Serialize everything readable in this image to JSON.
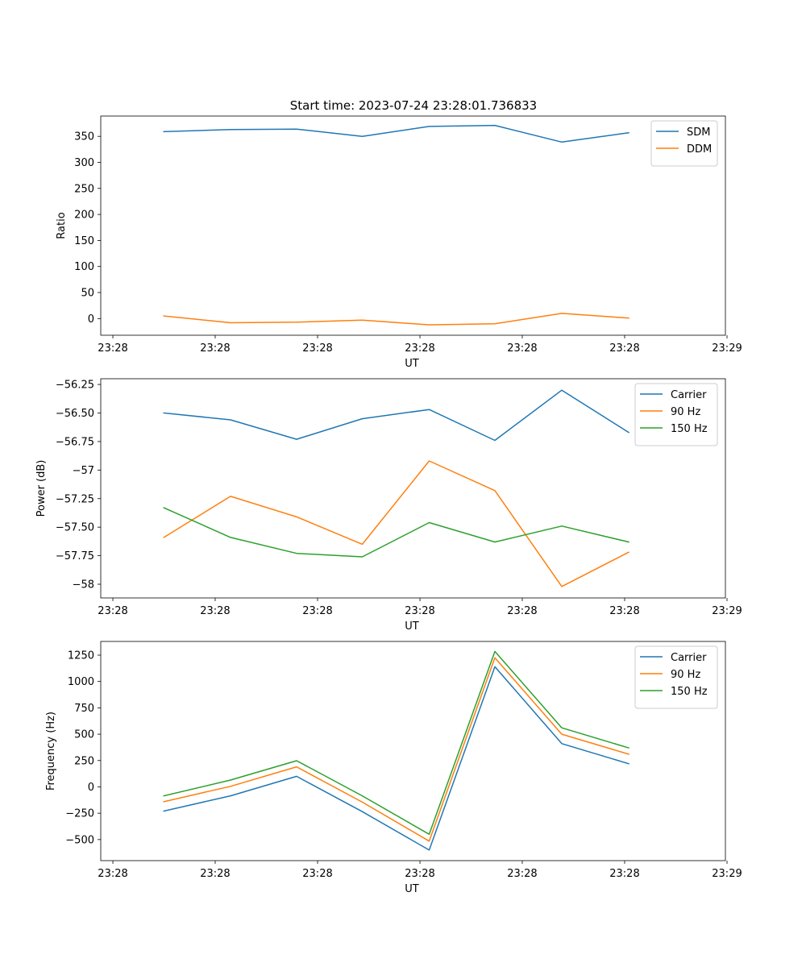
{
  "figure": {
    "title": "Start time: 2023-07-24 23:28:01.736833"
  },
  "chart_data": [
    {
      "type": "line",
      "xlabel": "UT",
      "ylabel": "Ratio",
      "x_ticks": [
        "23:28",
        "23:28",
        "23:28",
        "23:28",
        "23:28",
        "23:28",
        "23:29"
      ],
      "y_ticks": [
        0,
        50,
        100,
        150,
        200,
        250,
        300,
        350
      ],
      "ylim": [
        -32,
        389
      ],
      "legend_position": "top-right",
      "x": [
        1,
        2,
        3,
        4,
        5,
        6,
        7,
        8
      ],
      "series": [
        {
          "name": "SDM",
          "color": "#1f77b4",
          "values": [
            359,
            363,
            364,
            350,
            369,
            371,
            339,
            357
          ]
        },
        {
          "name": "DDM",
          "color": "#ff7f0e",
          "values": [
            5,
            -8,
            -7,
            -3,
            -12,
            -10,
            10,
            1
          ]
        }
      ]
    },
    {
      "type": "line",
      "xlabel": "UT",
      "ylabel": "Power (dB)",
      "x_ticks": [
        "23:28",
        "23:28",
        "23:28",
        "23:28",
        "23:28",
        "23:28",
        "23:29"
      ],
      "y_ticks": [
        -58.0,
        -57.75,
        -57.5,
        -57.25,
        -57.0,
        -56.75,
        -56.5,
        -56.25
      ],
      "ylim": [
        -58.12,
        -56.2
      ],
      "legend_position": "top-right",
      "x": [
        1,
        2,
        3,
        4,
        5,
        6,
        7,
        8
      ],
      "series": [
        {
          "name": "Carrier",
          "color": "#1f77b4",
          "values": [
            -56.5,
            -56.56,
            -56.73,
            -56.55,
            -56.47,
            -56.74,
            -56.3,
            -56.67
          ]
        },
        {
          "name": "90 Hz",
          "color": "#ff7f0e",
          "values": [
            -57.59,
            -57.23,
            -57.41,
            -57.65,
            -56.92,
            -57.18,
            -58.02,
            -57.72
          ]
        },
        {
          "name": "150 Hz",
          "color": "#2ca02c",
          "values": [
            -57.33,
            -57.59,
            -57.73,
            -57.76,
            -57.46,
            -57.63,
            -57.49,
            -57.63
          ]
        }
      ]
    },
    {
      "type": "line",
      "xlabel": "UT",
      "ylabel": "Frequency (Hz)",
      "x_ticks": [
        "23:28",
        "23:28",
        "23:28",
        "23:28",
        "23:28",
        "23:28",
        "23:29"
      ],
      "y_ticks": [
        -500,
        -250,
        0,
        250,
        500,
        750,
        1000,
        1250
      ],
      "ylim": [
        -700,
        1380
      ],
      "legend_position": "top-right",
      "x": [
        1,
        2,
        3,
        4,
        5,
        6,
        7,
        8
      ],
      "series": [
        {
          "name": "Carrier",
          "color": "#1f77b4",
          "values": [
            -230,
            -85,
            100,
            -235,
            -600,
            1140,
            410,
            220
          ]
        },
        {
          "name": "90 Hz",
          "color": "#ff7f0e",
          "values": [
            -140,
            5,
            190,
            -145,
            -515,
            1225,
            500,
            310
          ]
        },
        {
          "name": "150 Hz",
          "color": "#2ca02c",
          "values": [
            -85,
            65,
            248,
            -85,
            -450,
            1285,
            560,
            370
          ]
        }
      ]
    }
  ]
}
